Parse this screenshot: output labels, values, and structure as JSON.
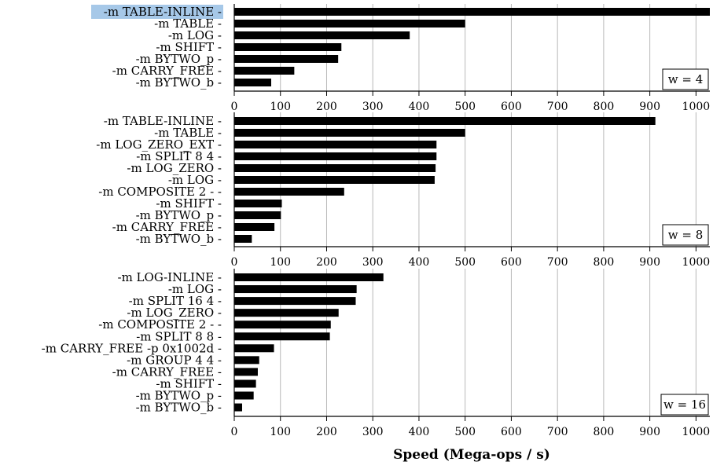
{
  "chart_data": {
    "type": "bar",
    "orientation": "horizontal",
    "xlabel": "Speed (Mega-ops / s)",
    "xlim": [
      0,
      1030
    ],
    "xticks": [
      0,
      100,
      200,
      300,
      400,
      500,
      600,
      700,
      800,
      900,
      1000
    ],
    "grid": true,
    "highlighted_label": "-m TABLE-INLINE",
    "panels": [
      {
        "label": "w = 4",
        "categories": [
          "-m TABLE-INLINE",
          "-m TABLE",
          "-m LOG",
          "-m SHIFT",
          "-m BYTWO_p",
          "-m CARRY_FREE",
          "-m BYTWO_b"
        ],
        "values": [
          1030,
          500,
          380,
          232,
          225,
          130,
          80
        ]
      },
      {
        "label": "w = 8",
        "categories": [
          "-m TABLE-INLINE",
          "-m TABLE",
          "-m LOG_ZERO_EXT",
          "-m SPLIT 8 4",
          "-m LOG_ZERO",
          "-m LOG",
          "-m COMPOSITE 2 -",
          "-m SHIFT",
          "-m BYTWO_p",
          "-m CARRY_FREE",
          "-m BYTWO_b"
        ],
        "values": [
          912,
          500,
          438,
          438,
          436,
          434,
          238,
          103,
          101,
          87,
          38
        ]
      },
      {
        "label": "w = 16",
        "categories": [
          "-m LOG-INLINE",
          "-m LOG",
          "-m SPLIT 16 4",
          "-m LOG_ZERO",
          "-m COMPOSITE 2 -",
          "-m SPLIT 8 8",
          "-m CARRY_FREE -p 0x1002d",
          "-m GROUP 4 4",
          "-m CARRY_FREE",
          "-m SHIFT",
          "-m BYTWO_p",
          "-m BYTWO_b"
        ],
        "values": [
          323,
          265,
          263,
          226,
          209,
          207,
          86,
          54,
          51,
          47,
          42,
          17
        ]
      }
    ]
  }
}
